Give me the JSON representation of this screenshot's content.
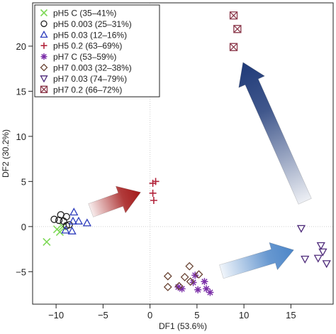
{
  "chart_data": {
    "type": "scatter",
    "title": "",
    "xlabel": "DF1 (53.6%)",
    "ylabel": "DF2 (30.2%)",
    "xlim": [
      -12.5,
      19.5
    ],
    "ylim": [
      -8.6,
      24.8
    ],
    "x_ticks": [
      {
        "value": -10,
        "label": "−10"
      },
      {
        "value": -5,
        "label": "−5"
      },
      {
        "value": 0,
        "label": "0"
      },
      {
        "value": 5,
        "label": "5"
      },
      {
        "value": 10,
        "label": "10"
      },
      {
        "value": 15,
        "label": "15"
      }
    ],
    "y_ticks": [
      {
        "value": -5,
        "label": "−5"
      },
      {
        "value": 0,
        "label": "0"
      },
      {
        "value": 5,
        "label": "5"
      },
      {
        "value": 10,
        "label": "10"
      },
      {
        "value": 15,
        "label": "15"
      },
      {
        "value": 20,
        "label": "20"
      }
    ],
    "grid": false,
    "reference_lines": {
      "x": 0,
      "y": 0,
      "style": "dotted"
    },
    "legend_position": "top-left",
    "series": [
      {
        "name": "pH5 C (35–41%)",
        "marker": "x",
        "color": "#7ed957",
        "points": [
          [
            -11,
            -1.7
          ],
          [
            -9.9,
            -0.3
          ],
          [
            -9.6,
            -0.6
          ],
          [
            -9.3,
            0
          ]
        ]
      },
      {
        "name": "pH5 0.003 (25–31%)",
        "marker": "circle",
        "color": "#222222",
        "points": [
          [
            -10.2,
            0.8
          ],
          [
            -9.7,
            0.7
          ],
          [
            -9.2,
            0.6
          ],
          [
            -8.9,
            1.1
          ],
          [
            -8.9,
            0.1
          ],
          [
            -9.5,
            1.3
          ],
          [
            -8.6,
            0.2
          ]
        ]
      },
      {
        "name": "pH5 0.03 (12–16%)",
        "marker": "triangle-up",
        "color": "#2e3dbd",
        "points": [
          [
            -8.1,
            1.6
          ],
          [
            -8.2,
            0.6
          ],
          [
            -7.6,
            0.6
          ],
          [
            -6.7,
            0.4
          ],
          [
            -9,
            -0.4
          ],
          [
            -8.3,
            -0.5
          ]
        ]
      },
      {
        "name": "pH5 0.2 (63–69%)",
        "marker": "plus",
        "color": "#b2243b",
        "points": [
          [
            0.3,
            4.8
          ],
          [
            0.6,
            5
          ],
          [
            0.3,
            3.7
          ],
          [
            0.4,
            2.9
          ]
        ]
      },
      {
        "name": "pH7 C (53–59%)",
        "marker": "asterisk",
        "color": "#7b2fa8",
        "points": [
          [
            3,
            -6.7
          ],
          [
            3.4,
            -6.9
          ],
          [
            4.8,
            -5.4
          ],
          [
            4.6,
            -6.2
          ],
          [
            5.1,
            -7
          ],
          [
            5.8,
            -6.1
          ],
          [
            6,
            -6.9
          ],
          [
            6.4,
            -7.3
          ]
        ]
      },
      {
        "name": "pH7 0.003 (32–38%)",
        "marker": "diamond",
        "color": "#6b4636",
        "points": [
          [
            1.9,
            -5.5
          ],
          [
            1.9,
            -6.7
          ],
          [
            3.7,
            -5.6
          ],
          [
            4.2,
            -4.4
          ],
          [
            4.3,
            -6.1
          ],
          [
            5.2,
            -5.3
          ],
          [
            3.1,
            -6.6
          ]
        ]
      },
      {
        "name": "pH7 0.03 (74–79%)",
        "marker": "triangle-down",
        "color": "#4e2a7a",
        "points": [
          [
            16.1,
            -0.2
          ],
          [
            16.5,
            -3.6
          ],
          [
            17.9,
            -3.5
          ],
          [
            18.2,
            -2.1
          ],
          [
            18.4,
            -2.8
          ],
          [
            18.8,
            -4.1
          ]
        ]
      },
      {
        "name": "pH7 0.2 (66–72%)",
        "marker": "boxed-x",
        "color": "#8c3a4c",
        "points": [
          [
            8.9,
            23.4
          ],
          [
            9.3,
            21.9
          ],
          [
            8.9,
            19.9
          ]
        ]
      }
    ],
    "arrows": [
      {
        "from": [
          -6.3,
          1.8
        ],
        "to": [
          -1,
          3.8
        ],
        "color": "#a31818"
      },
      {
        "from": [
          16.5,
          2.8
        ],
        "to": [
          9.9,
          18.2
        ],
        "color": "#1f3a78"
      },
      {
        "from": [
          7.6,
          -5
        ],
        "to": [
          15.3,
          -2.6
        ],
        "color": "#4d86c8"
      }
    ]
  }
}
